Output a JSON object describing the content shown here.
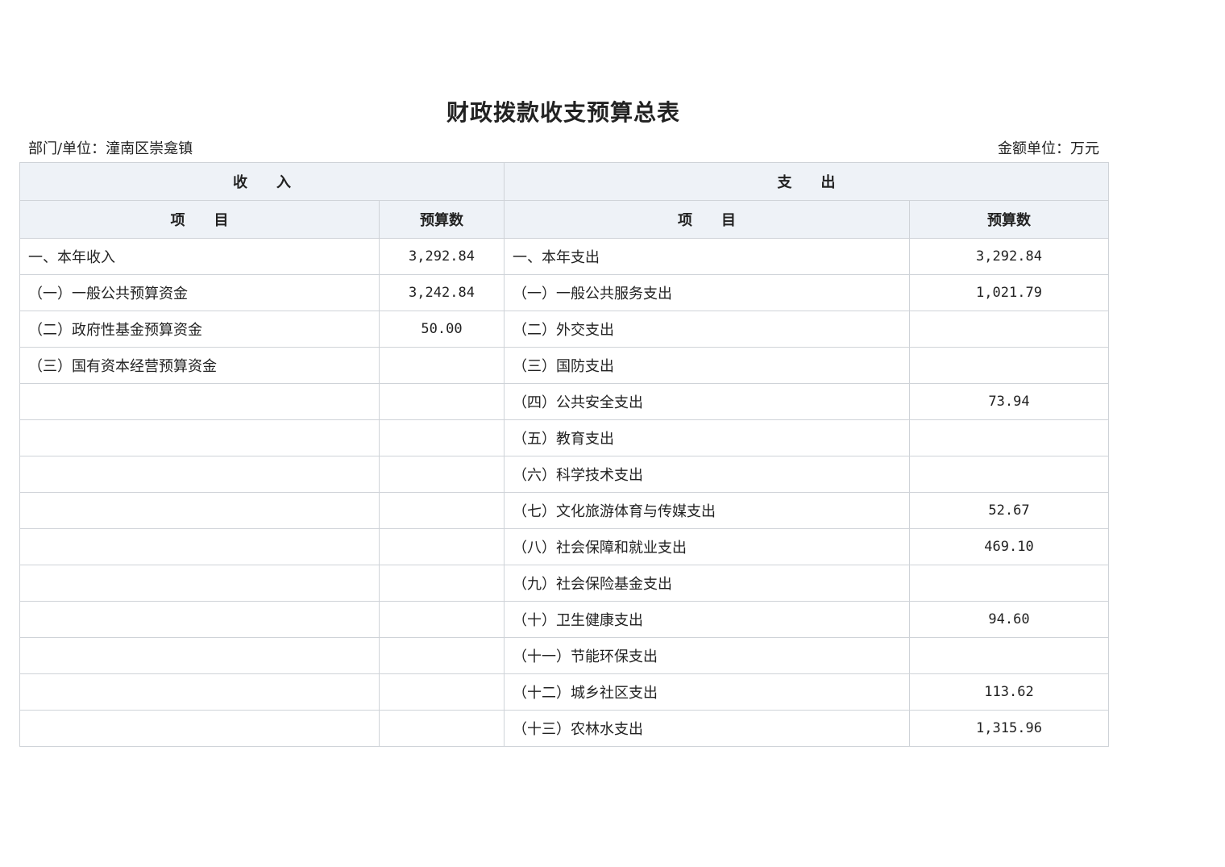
{
  "title": "财政拨款收支预算总表",
  "department": "部门/单位：潼南区崇龛镇",
  "unit": "金额单位：万元",
  "header": {
    "income": "收　　入",
    "expense": "支　　出",
    "item": "项　　目",
    "budget": "预算数"
  },
  "rows": [
    {
      "income_item": "一、本年收入",
      "income_amount": "3,292.84",
      "expense_item": "一、本年支出",
      "expense_amount": "3,292.84"
    },
    {
      "income_item": "（一）一般公共预算资金",
      "income_amount": "3,242.84",
      "expense_item": "（一）一般公共服务支出",
      "expense_amount": "1,021.79"
    },
    {
      "income_item": "（二）政府性基金预算资金",
      "income_amount": "50.00",
      "expense_item": "（二）外交支出",
      "expense_amount": ""
    },
    {
      "income_item": "（三）国有资本经营预算资金",
      "income_amount": "",
      "expense_item": "（三）国防支出",
      "expense_amount": ""
    },
    {
      "income_item": "",
      "income_amount": "",
      "expense_item": "（四）公共安全支出",
      "expense_amount": "73.94"
    },
    {
      "income_item": "",
      "income_amount": "",
      "expense_item": "（五）教育支出",
      "expense_amount": ""
    },
    {
      "income_item": "",
      "income_amount": "",
      "expense_item": "（六）科学技术支出",
      "expense_amount": ""
    },
    {
      "income_item": "",
      "income_amount": "",
      "expense_item": "（七）文化旅游体育与传媒支出",
      "expense_amount": "52.67"
    },
    {
      "income_item": "",
      "income_amount": "",
      "expense_item": "（八）社会保障和就业支出",
      "expense_amount": "469.10"
    },
    {
      "income_item": "",
      "income_amount": "",
      "expense_item": "（九）社会保险基金支出",
      "expense_amount": ""
    },
    {
      "income_item": "",
      "income_amount": "",
      "expense_item": "（十）卫生健康支出",
      "expense_amount": "94.60"
    },
    {
      "income_item": "",
      "income_amount": "",
      "expense_item": "（十一）节能环保支出",
      "expense_amount": ""
    },
    {
      "income_item": "",
      "income_amount": "",
      "expense_item": "（十二）城乡社区支出",
      "expense_amount": "113.62"
    },
    {
      "income_item": "",
      "income_amount": "",
      "expense_item": "（十三）农林水支出",
      "expense_amount": "1,315.96"
    }
  ]
}
